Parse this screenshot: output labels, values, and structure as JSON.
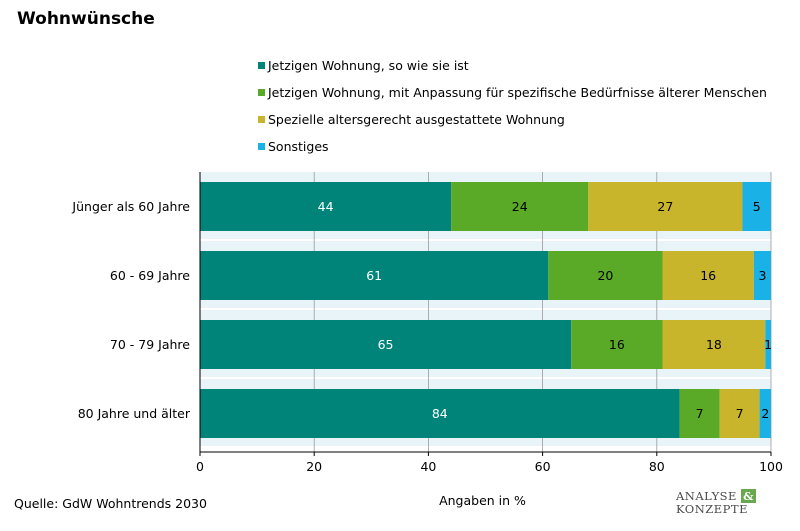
{
  "title": "Wohnwünsche",
  "source": "Quelle: GdW Wohntrends 2030",
  "logo": {
    "line1": "ANALYSE",
    "amp": "&",
    "line2": "KONZEPTE"
  },
  "chart_data": {
    "type": "bar",
    "orientation": "horizontal",
    "stacked": true,
    "categories": [
      "Jünger als 60 Jahre",
      "60 - 69 Jahre",
      "70 - 79 Jahre",
      "80 Jahre und älter"
    ],
    "series": [
      {
        "name": "Jetzigen Wohnung, so wie sie ist",
        "color": "#00847a",
        "label_color": "#ffffff",
        "values": [
          44,
          61,
          65,
          84
        ]
      },
      {
        "name": "Jetzigen Wohnung, mit Anpassung für spezifische Bedürfnisse älterer Menschen",
        "color": "#5aaa28",
        "label_color": "#000000",
        "values": [
          24,
          20,
          16,
          7
        ]
      },
      {
        "name": "Spezielle altersgerecht ausgestattete Wohnung",
        "color": "#c9b52c",
        "label_color": "#000000",
        "values": [
          27,
          16,
          18,
          7
        ]
      },
      {
        "name": "Sonstiges",
        "color": "#19b1e6",
        "label_color": "#000000",
        "values": [
          5,
          3,
          1,
          2
        ]
      }
    ],
    "xlabel": "Angaben in %",
    "xlim": [
      0,
      100
    ],
    "xticks": [
      0,
      20,
      40,
      60,
      80,
      100
    ],
    "grid": true,
    "legend_position": "top",
    "band_color": "#e9f4f9"
  }
}
